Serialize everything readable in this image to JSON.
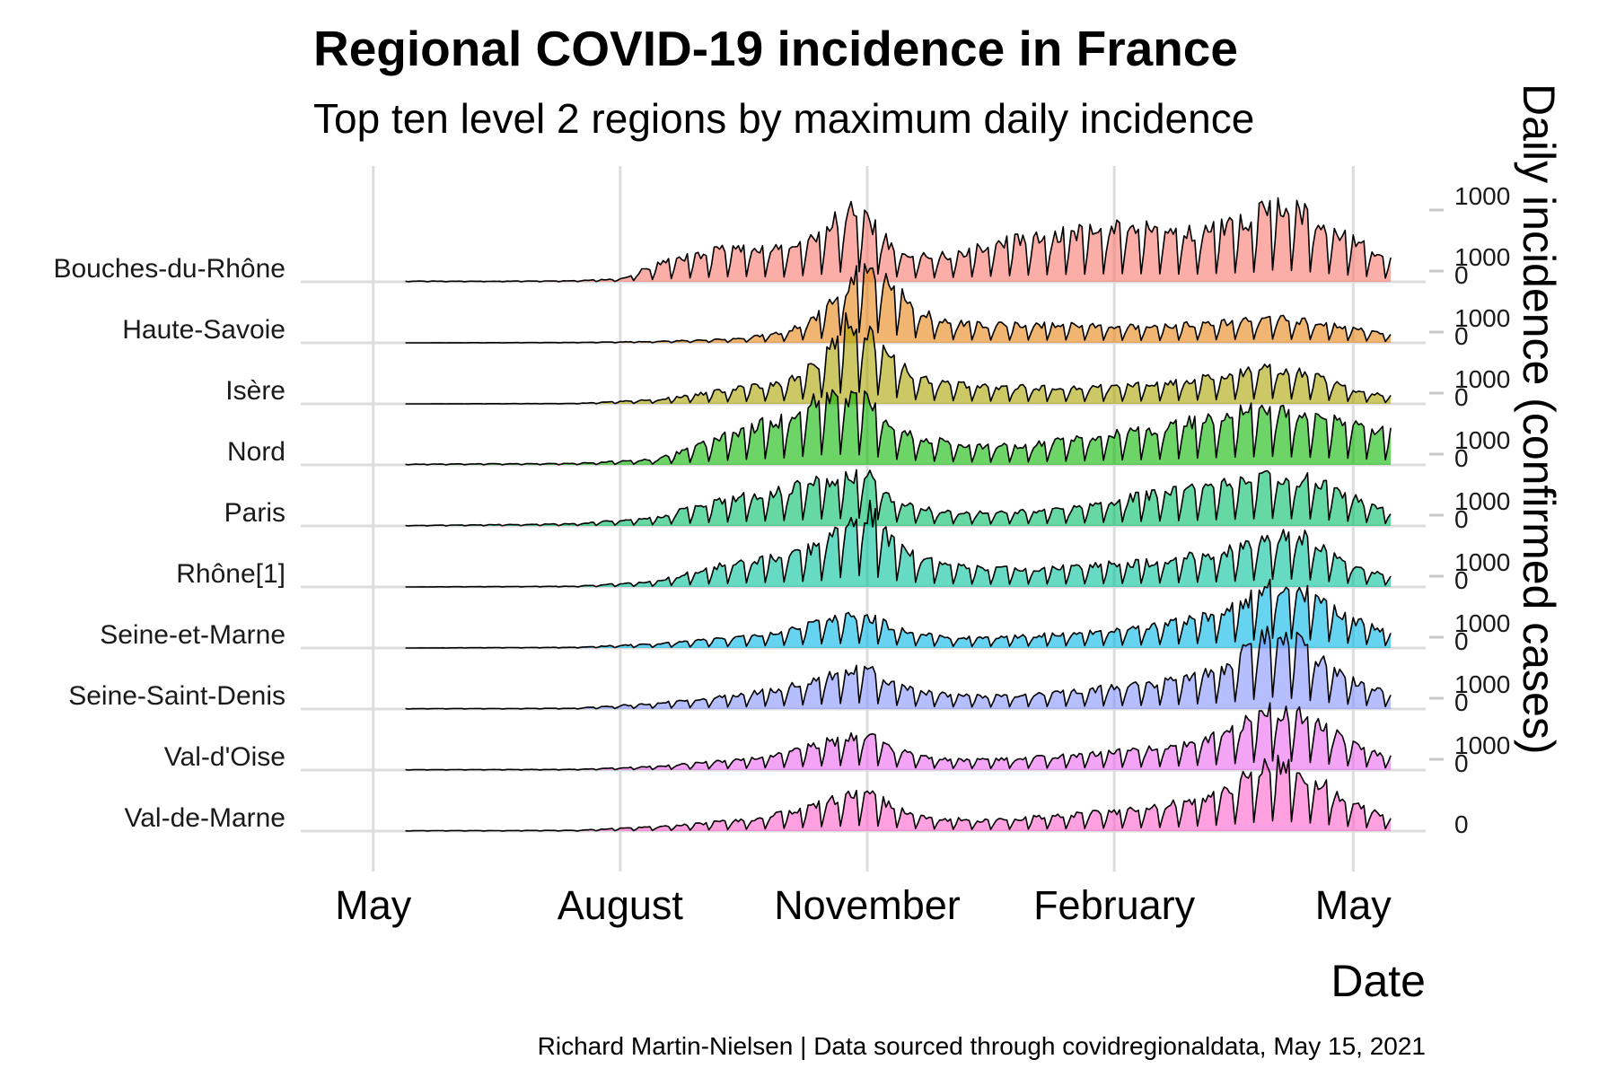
{
  "chart_data": {
    "type": "area",
    "title": "Regional COVID-19 incidence in France",
    "subtitle": "Top ten level 2 regions by maximum daily incidence",
    "xlabel": "Date",
    "ylabel": "Daily incidence (confirmed cases)",
    "caption": "Richard Martin-Nielsen | Data sourced through covidregionaldata, May 15, 2021",
    "x_ticks": [
      "May",
      "August",
      "November",
      "February",
      "May"
    ],
    "x_tick_dates": [
      "2020-05-01",
      "2020-08-01",
      "2020-11-01",
      "2021-02-01",
      "2021-05-01"
    ],
    "x_range": [
      "2020-05-13",
      "2021-05-15"
    ],
    "y_ticks": [
      "0",
      "1000"
    ],
    "ylim": [
      0,
      1000
    ],
    "legend": "none",
    "grid": true,
    "series": [
      {
        "name": "Bouches-du-Rhône",
        "color": "#F8766D",
        "x": [
          "2020-05-13",
          "2020-06-15",
          "2020-07-15",
          "2020-08-01",
          "2020-08-15",
          "2020-09-01",
          "2020-09-15",
          "2020-10-01",
          "2020-10-15",
          "2020-10-25",
          "2020-11-01",
          "2020-11-10",
          "2020-11-20",
          "2020-12-01",
          "2020-12-15",
          "2021-01-01",
          "2021-01-15",
          "2021-02-01",
          "2021-02-15",
          "2021-03-01",
          "2021-03-15",
          "2021-03-25",
          "2021-04-01",
          "2021-04-10",
          "2021-04-20",
          "2021-05-01",
          "2021-05-15"
        ],
        "values": [
          10,
          8,
          15,
          40,
          250,
          400,
          500,
          450,
          700,
          1000,
          900,
          500,
          350,
          380,
          500,
          620,
          700,
          750,
          750,
          700,
          800,
          900,
          1100,
          1050,
          800,
          600,
          300
        ]
      },
      {
        "name": "Haute-Savoie",
        "color": "#E68613",
        "x": [
          "2020-05-13",
          "2020-07-15",
          "2020-08-15",
          "2020-09-15",
          "2020-10-01",
          "2020-10-15",
          "2020-10-25",
          "2020-11-01",
          "2020-11-10",
          "2020-11-20",
          "2020-12-01",
          "2020-12-15",
          "2021-01-15",
          "2021-02-15",
          "2021-03-15",
          "2021-04-01",
          "2021-04-15",
          "2021-05-01",
          "2021-05-15"
        ],
        "values": [
          0,
          5,
          20,
          60,
          150,
          420,
          850,
          1050,
          800,
          450,
          300,
          250,
          260,
          220,
          300,
          350,
          300,
          200,
          120
        ]
      },
      {
        "name": "Isère",
        "color": "#ABA300",
        "x": [
          "2020-05-13",
          "2020-07-15",
          "2020-08-15",
          "2020-09-01",
          "2020-09-15",
          "2020-10-01",
          "2020-10-15",
          "2020-10-25",
          "2020-11-01",
          "2020-11-10",
          "2020-11-20",
          "2020-12-01",
          "2020-12-15",
          "2021-01-15",
          "2021-02-15",
          "2021-03-15",
          "2021-04-01",
          "2021-04-10",
          "2021-04-20",
          "2021-05-01",
          "2021-05-15"
        ],
        "values": [
          0,
          5,
          60,
          150,
          220,
          300,
          600,
          1200,
          1000,
          650,
          350,
          300,
          250,
          220,
          270,
          400,
          500,
          450,
          350,
          200,
          110
        ]
      },
      {
        "name": "Nord",
        "color": "#0CB702",
        "x": [
          "2020-05-13",
          "2020-07-15",
          "2020-08-15",
          "2020-09-01",
          "2020-09-15",
          "2020-10-01",
          "2020-10-15",
          "2020-10-25",
          "2020-11-01",
          "2020-11-10",
          "2020-11-20",
          "2020-12-01",
          "2020-12-15",
          "2021-01-01",
          "2021-01-15",
          "2021-02-01",
          "2021-02-15",
          "2021-03-01",
          "2021-03-15",
          "2021-04-01",
          "2021-04-15",
          "2021-05-01",
          "2021-05-15"
        ],
        "values": [
          10,
          20,
          80,
          300,
          500,
          650,
          950,
          1000,
          900,
          550,
          400,
          300,
          250,
          280,
          350,
          450,
          500,
          600,
          700,
          800,
          700,
          600,
          450
        ]
      },
      {
        "name": "Paris",
        "color": "#00BE67",
        "x": [
          "2020-05-13",
          "2020-07-15",
          "2020-08-15",
          "2020-09-01",
          "2020-09-15",
          "2020-10-01",
          "2020-10-15",
          "2020-10-25",
          "2020-11-01",
          "2020-11-10",
          "2020-11-20",
          "2020-12-01",
          "2020-12-15",
          "2021-01-15",
          "2021-02-01",
          "2021-02-15",
          "2021-03-01",
          "2021-03-15",
          "2021-04-01",
          "2021-04-15",
          "2021-05-01",
          "2021-05-15"
        ],
        "values": [
          5,
          30,
          120,
          300,
          400,
          500,
          650,
          700,
          750,
          400,
          250,
          200,
          180,
          250,
          350,
          450,
          500,
          600,
          700,
          650,
          400,
          200
        ]
      },
      {
        "name": "Rhône[1]",
        "color": "#00C19A",
        "x": [
          "2020-05-13",
          "2020-07-15",
          "2020-08-15",
          "2020-09-01",
          "2020-09-15",
          "2020-10-01",
          "2020-10-15",
          "2020-10-25",
          "2020-11-01",
          "2020-11-10",
          "2020-11-20",
          "2020-12-01",
          "2020-12-15",
          "2021-01-15",
          "2021-02-15",
          "2021-03-15",
          "2021-04-01",
          "2021-04-10",
          "2021-04-20",
          "2021-05-01",
          "2021-05-15"
        ],
        "values": [
          0,
          10,
          80,
          250,
          350,
          450,
          600,
          1000,
          1100,
          650,
          400,
          300,
          250,
          280,
          350,
          500,
          700,
          750,
          550,
          300,
          150
        ]
      },
      {
        "name": "Seine-et-Marne",
        "color": "#00B8E7",
        "x": [
          "2020-05-13",
          "2020-07-15",
          "2020-08-15",
          "2020-09-15",
          "2020-10-01",
          "2020-10-15",
          "2020-10-25",
          "2020-11-01",
          "2020-11-10",
          "2020-11-20",
          "2020-12-01",
          "2020-12-15",
          "2021-01-15",
          "2021-02-15",
          "2021-03-15",
          "2021-03-25",
          "2021-04-01",
          "2021-04-10",
          "2021-04-20",
          "2021-05-01",
          "2021-05-15"
        ],
        "values": [
          0,
          10,
          60,
          150,
          250,
          380,
          430,
          450,
          300,
          200,
          150,
          140,
          200,
          300,
          500,
          750,
          900,
          850,
          650,
          400,
          200
        ]
      },
      {
        "name": "Seine-Saint-Denis",
        "color": "#8494FF",
        "x": [
          "2020-05-13",
          "2020-07-15",
          "2020-08-15",
          "2020-09-15",
          "2020-10-01",
          "2020-10-15",
          "2020-10-25",
          "2020-11-01",
          "2020-11-10",
          "2020-11-20",
          "2020-12-01",
          "2020-12-15",
          "2021-01-15",
          "2021-02-15",
          "2021-03-01",
          "2021-03-15",
          "2021-03-25",
          "2021-04-01",
          "2021-04-10",
          "2021-04-20",
          "2021-05-01",
          "2021-05-15"
        ],
        "values": [
          5,
          10,
          80,
          200,
          300,
          450,
          550,
          600,
          350,
          250,
          200,
          180,
          250,
          350,
          450,
          600,
          900,
          1100,
          950,
          650,
          400,
          200
        ]
      },
      {
        "name": "Val-d'Oise",
        "color": "#ED68ED",
        "x": [
          "2020-05-13",
          "2020-07-15",
          "2020-08-15",
          "2020-09-15",
          "2020-10-01",
          "2020-10-15",
          "2020-10-25",
          "2020-11-01",
          "2020-11-10",
          "2020-11-20",
          "2020-12-01",
          "2020-12-15",
          "2021-01-15",
          "2021-02-15",
          "2021-03-01",
          "2021-03-15",
          "2021-04-01",
          "2021-04-10",
          "2021-04-20",
          "2021-05-01",
          "2021-05-15"
        ],
        "values": [
          5,
          10,
          50,
          150,
          250,
          380,
          450,
          500,
          300,
          200,
          150,
          140,
          200,
          300,
          400,
          550,
          850,
          800,
          600,
          350,
          180
        ]
      },
      {
        "name": "Val-de-Marne",
        "color": "#FF61CC",
        "x": [
          "2020-05-13",
          "2020-07-15",
          "2020-08-15",
          "2020-09-15",
          "2020-10-01",
          "2020-10-15",
          "2020-10-25",
          "2020-11-01",
          "2020-11-10",
          "2020-11-20",
          "2020-12-01",
          "2020-12-15",
          "2021-01-15",
          "2021-02-15",
          "2021-03-01",
          "2021-03-15",
          "2021-04-01",
          "2021-04-10",
          "2021-04-20",
          "2021-05-01",
          "2021-05-15"
        ],
        "values": [
          5,
          10,
          60,
          150,
          250,
          400,
          500,
          550,
          350,
          220,
          170,
          150,
          220,
          320,
          420,
          600,
          950,
          850,
          650,
          380,
          180
        ]
      }
    ]
  }
}
